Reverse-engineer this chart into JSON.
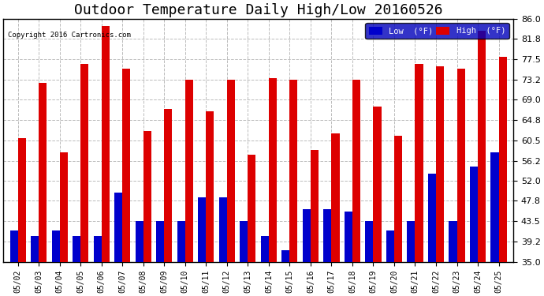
{
  "title": "Outdoor Temperature Daily High/Low 20160526",
  "copyright": "Copyright 2016 Cartronics.com",
  "dates": [
    "05/02",
    "05/03",
    "05/04",
    "05/05",
    "05/06",
    "05/07",
    "05/08",
    "05/09",
    "05/10",
    "05/11",
    "05/12",
    "05/13",
    "05/14",
    "05/15",
    "05/16",
    "05/17",
    "05/18",
    "05/19",
    "05/20",
    "05/21",
    "05/22",
    "05/23",
    "05/24",
    "05/25"
  ],
  "high": [
    61.0,
    72.5,
    58.0,
    76.5,
    84.5,
    75.5,
    62.5,
    67.0,
    73.2,
    66.5,
    73.2,
    57.5,
    73.5,
    73.2,
    58.5,
    62.0,
    73.2,
    67.5,
    61.5,
    76.5,
    76.0,
    75.5,
    83.5,
    78.0
  ],
  "low": [
    41.5,
    40.5,
    41.5,
    40.5,
    40.5,
    49.5,
    43.5,
    43.5,
    43.5,
    48.5,
    48.5,
    43.5,
    40.5,
    37.5,
    46.0,
    46.0,
    45.5,
    43.5,
    41.5,
    43.5,
    53.5,
    43.5,
    55.0,
    58.0
  ],
  "ylim_min": 35.0,
  "ylim_max": 86.0,
  "yticks": [
    35.0,
    39.2,
    43.5,
    47.8,
    52.0,
    56.2,
    60.5,
    64.8,
    69.0,
    73.2,
    77.5,
    81.8,
    86.0
  ],
  "high_color": "#dd0000",
  "low_color": "#0000cc",
  "bg_color": "#ffffff",
  "grid_color": "#bbbbbb",
  "title_fontsize": 13,
  "legend_low_label": "Low  (°F)",
  "legend_high_label": "High  (°F)"
}
